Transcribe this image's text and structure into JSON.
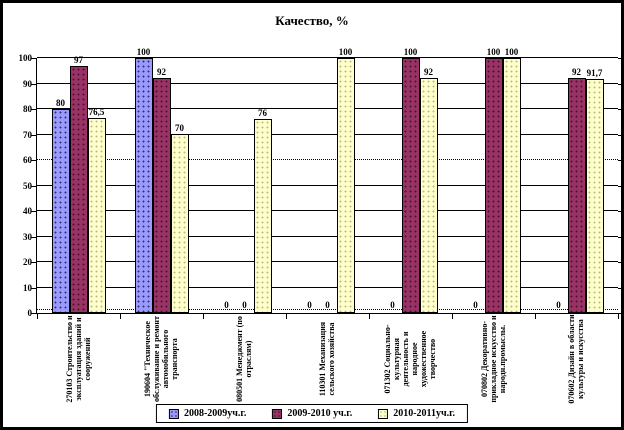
{
  "title": "Качество, %",
  "chart_data": {
    "type": "bar",
    "title": "Качество, %",
    "xlabel": "",
    "ylabel": "",
    "ylim": [
      0,
      100
    ],
    "ytick_step": 10,
    "grid": true,
    "dotted_gridlines": [
      60,
      1
    ],
    "legend_position": "bottom",
    "categories": [
      "270103 Строительство и эксплуатация зданий и сооружений",
      "190604 \"Техническое обслуживание и ремонт автомобильного транспорта",
      "080501 Менеджмент (по отраслям)",
      "110301 Механизация сельского хозяйства",
      "071302 Социально-культурная деятельность и народное художественное творчество",
      "070802 Декоративно-прикладное искусство и народн.промыслы.",
      "070602 Дизайн в области культуры и искусства"
    ],
    "series": [
      {
        "name": "2008-2009уч.г.",
        "color": "#9999FF",
        "dot_color": "#333366",
        "values": [
          80,
          100,
          0,
          0,
          0,
          0,
          0
        ],
        "labels": [
          "80",
          "100",
          "0",
          "0",
          "0",
          "0",
          "0"
        ]
      },
      {
        "name": "2009-2010 уч.г.",
        "color": "#993366",
        "dot_color": "#4A1030",
        "values": [
          97,
          92,
          0,
          0,
          100,
          100,
          92
        ],
        "labels": [
          "97",
          "92",
          "0",
          "0",
          "100",
          "100",
          "92"
        ]
      },
      {
        "name": "2010-2011уч.г.",
        "color": "#FFFFCC",
        "dot_color": "#BBBB88",
        "values": [
          76.5,
          70,
          76,
          100,
          92,
          100,
          91.7
        ],
        "labels": [
          "76,5",
          "70",
          "76",
          "100",
          "92",
          "100",
          "91,7"
        ]
      }
    ]
  }
}
